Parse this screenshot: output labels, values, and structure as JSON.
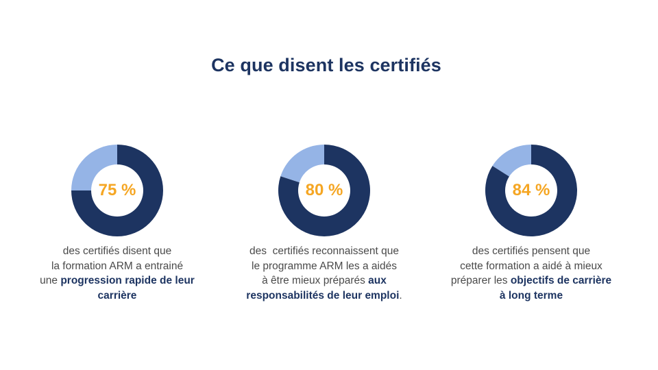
{
  "title": "Ce que disent les certifiés",
  "colors": {
    "title": "#1d3461",
    "ring_main": "#1d3461",
    "ring_rest": "#95b4e6",
    "value": "#f5a623",
    "caption_text": "#4a4a4a"
  },
  "chart_data": [
    {
      "type": "pie",
      "value_label": "75 %",
      "values": [
        75,
        25
      ],
      "caption": {
        "line1": "des certifiés disent que",
        "line2": "la formation ARM a entrainé",
        "line3a": "une ",
        "line3b": "progression rapide de leur",
        "line4a": "carrière",
        "line4b": ""
      }
    },
    {
      "type": "pie",
      "value_label": "80 %",
      "values": [
        80,
        20
      ],
      "caption": {
        "line1": "des  certifiés reconnaissent que",
        "line2": "le programme ARM les a aidés",
        "line3a": "à être mieux préparés ",
        "line3b": "aux",
        "line4a": "responsabilités de leur emploi",
        "line4b": "."
      }
    },
    {
      "type": "pie",
      "value_label": "84 %",
      "values": [
        84,
        16
      ],
      "caption": {
        "line1": "des certifiés pensent que",
        "line2": "cette formation a aidé à mieux",
        "line3a": "préparer les ",
        "line3b": "objectifs de carrière",
        "line4a": "à long terme",
        "line4b": ""
      }
    }
  ]
}
